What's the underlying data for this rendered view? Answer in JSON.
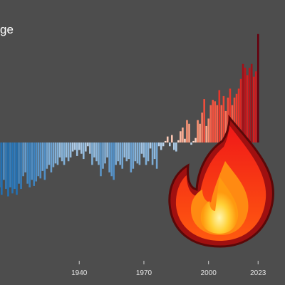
{
  "chart_data": {
    "type": "bar",
    "title_fragment": "ge",
    "xlabel": "",
    "ylabel": "",
    "xlim": [
      1901,
      2023
    ],
    "ylim": [
      -1.0,
      1.55
    ],
    "baseline": 0,
    "grid": false,
    "legend": "none",
    "x_ticks": [
      {
        "value": 1940,
        "label": "1940"
      },
      {
        "value": 1970,
        "label": "1970"
      },
      {
        "value": 2000,
        "label": "2000"
      },
      {
        "value": 2023,
        "label": "2023"
      }
    ],
    "years": [
      1901,
      1902,
      1903,
      1904,
      1905,
      1906,
      1907,
      1908,
      1909,
      1910,
      1911,
      1912,
      1913,
      1914,
      1915,
      1916,
      1917,
      1918,
      1919,
      1920,
      1921,
      1922,
      1923,
      1924,
      1925,
      1926,
      1927,
      1928,
      1929,
      1930,
      1931,
      1932,
      1933,
      1934,
      1935,
      1936,
      1937,
      1938,
      1939,
      1940,
      1941,
      1942,
      1943,
      1944,
      1945,
      1946,
      1947,
      1948,
      1949,
      1950,
      1951,
      1952,
      1953,
      1954,
      1955,
      1956,
      1957,
      1958,
      1959,
      1960,
      1961,
      1962,
      1963,
      1964,
      1965,
      1966,
      1967,
      1968,
      1969,
      1970,
      1971,
      1972,
      1973,
      1974,
      1975,
      1976,
      1977,
      1978,
      1979,
      1980,
      1981,
      1982,
      1983,
      1984,
      1985,
      1986,
      1987,
      1988,
      1989,
      1990,
      1991,
      1992,
      1993,
      1994,
      1995,
      1996,
      1997,
      1998,
      1999,
      2000,
      2001,
      2002,
      2003,
      2004,
      2005,
      2006,
      2007,
      2008,
      2009,
      2010,
      2011,
      2012,
      2013,
      2014,
      2015,
      2016,
      2017,
      2018,
      2019,
      2020,
      2021,
      2022,
      2023
    ],
    "values": [
      -0.42,
      -0.55,
      -0.6,
      -0.7,
      -0.5,
      -0.62,
      -0.72,
      -0.6,
      -0.68,
      -0.62,
      -0.7,
      -0.55,
      -0.62,
      -0.45,
      -0.4,
      -0.55,
      -0.6,
      -0.5,
      -0.58,
      -0.52,
      -0.45,
      -0.48,
      -0.38,
      -0.5,
      -0.35,
      -0.3,
      -0.4,
      -0.33,
      -0.28,
      -0.3,
      -0.2,
      -0.25,
      -0.3,
      -0.2,
      -0.25,
      -0.2,
      -0.12,
      -0.1,
      -0.18,
      -0.1,
      -0.15,
      -0.22,
      -0.12,
      -0.05,
      -0.15,
      -0.3,
      -0.2,
      -0.25,
      -0.3,
      -0.45,
      -0.35,
      -0.28,
      -0.2,
      -0.4,
      -0.45,
      -0.5,
      -0.3,
      -0.25,
      -0.3,
      -0.35,
      -0.2,
      -0.25,
      -0.22,
      -0.4,
      -0.35,
      -0.25,
      -0.28,
      -0.3,
      -0.15,
      -0.2,
      -0.3,
      -0.25,
      -0.08,
      -0.3,
      -0.22,
      -0.35,
      -0.05,
      -0.1,
      -0.05,
      0.02,
      0.08,
      -0.05,
      0.1,
      -0.1,
      -0.12,
      0.03,
      0.15,
      0.2,
      0.05,
      0.3,
      0.25,
      -0.03,
      0.02,
      0.06,
      0.3,
      0.25,
      0.4,
      0.58,
      0.22,
      0.32,
      0.5,
      0.57,
      0.55,
      0.5,
      0.7,
      0.5,
      0.62,
      0.42,
      0.6,
      0.72,
      0.5,
      0.6,
      0.65,
      0.72,
      0.85,
      1.05,
      1.0,
      0.9,
      1.0,
      1.05,
      0.88,
      0.95,
      1.45
    ]
  }
}
